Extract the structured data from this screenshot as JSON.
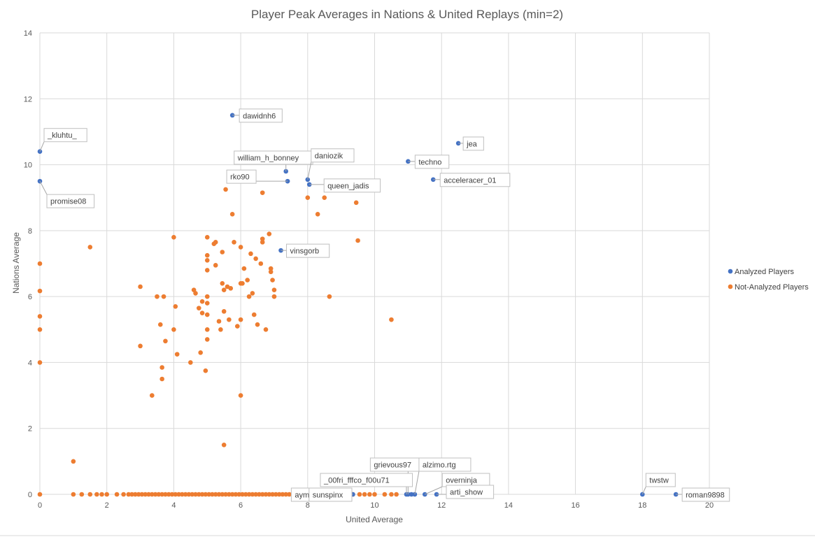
{
  "chart_data": {
    "type": "scatter",
    "title": "Player Peak Averages in Nations & United Replays (min=2)",
    "xlabel": "United Average",
    "ylabel": "Nations Average",
    "xlim": [
      0,
      20
    ],
    "ylim": [
      0,
      14
    ],
    "xticks": [
      0,
      2,
      4,
      6,
      8,
      10,
      12,
      14,
      16,
      18,
      20
    ],
    "yticks": [
      0,
      2,
      4,
      6,
      8,
      10,
      12,
      14
    ],
    "grid": true,
    "legend_position": "right",
    "series": [
      {
        "name": "Analyzed Players",
        "color": "#4472C4",
        "points": [
          {
            "x": 0,
            "y": 10.4,
            "label": "_kluhtu_"
          },
          {
            "x": 0,
            "y": 9.5,
            "label": "promise08"
          },
          {
            "x": 5.75,
            "y": 11.5,
            "label": "dawidnh6"
          },
          {
            "x": 7.35,
            "y": 9.8,
            "label": "william_h_bonney"
          },
          {
            "x": 7.4,
            "y": 9.5,
            "label": "rko90"
          },
          {
            "x": 8.0,
            "y": 9.55,
            "label": "daniozik"
          },
          {
            "x": 8.05,
            "y": 9.4,
            "label": "queen_jadis"
          },
          {
            "x": 11.0,
            "y": 10.1,
            "label": "techno"
          },
          {
            "x": 12.5,
            "y": 10.65,
            "label": "jea"
          },
          {
            "x": 11.75,
            "y": 9.55,
            "label": "acceleracer_01"
          },
          {
            "x": 7.2,
            "y": 7.4,
            "label": "vinsgorb"
          },
          {
            "x": 11.0,
            "y": 0,
            "label": "grievous97"
          },
          {
            "x": 11.2,
            "y": 0,
            "label": "alzimo.rtg"
          },
          {
            "x": 10.95,
            "y": 0,
            "label": "_00fri_fffco_f00u71"
          },
          {
            "x": 11.5,
            "y": 0,
            "label": "overninja"
          },
          {
            "x": 11.85,
            "y": 0,
            "label": "arti_show"
          },
          {
            "x": 9.35,
            "y": 0,
            "label": "aymeric_98"
          },
          {
            "x": 8.0,
            "y": 0,
            "label": "sunspinx"
          },
          {
            "x": 18.0,
            "y": 0,
            "label": "twstw"
          },
          {
            "x": 19.0,
            "y": 0,
            "label": "roman9898"
          },
          {
            "x": 11.1,
            "y": 0,
            "label": ""
          }
        ]
      },
      {
        "name": "Not-Analyzed Players",
        "color": "#ED7D31",
        "points": [
          {
            "x": 0,
            "y": 7.0
          },
          {
            "x": 0,
            "y": 6.17
          },
          {
            "x": 0,
            "y": 5.4
          },
          {
            "x": 0,
            "y": 5.0
          },
          {
            "x": 0,
            "y": 4.0
          },
          {
            "x": 1.0,
            "y": 1.0
          },
          {
            "x": 1.5,
            "y": 7.5
          },
          {
            "x": 3.0,
            "y": 6.3
          },
          {
            "x": 3.0,
            "y": 4.5
          },
          {
            "x": 3.35,
            "y": 3.0
          },
          {
            "x": 3.5,
            "y": 6.0
          },
          {
            "x": 3.6,
            "y": 5.15
          },
          {
            "x": 3.65,
            "y": 3.85
          },
          {
            "x": 3.65,
            "y": 3.5
          },
          {
            "x": 3.7,
            "y": 6.0
          },
          {
            "x": 3.75,
            "y": 4.65
          },
          {
            "x": 4.0,
            "y": 7.8
          },
          {
            "x": 4.0,
            "y": 5.0
          },
          {
            "x": 4.05,
            "y": 5.7
          },
          {
            "x": 4.1,
            "y": 4.25
          },
          {
            "x": 4.5,
            "y": 4.0
          },
          {
            "x": 4.6,
            "y": 6.2
          },
          {
            "x": 4.65,
            "y": 6.1
          },
          {
            "x": 4.75,
            "y": 5.65
          },
          {
            "x": 4.8,
            "y": 4.3
          },
          {
            "x": 4.85,
            "y": 5.85
          },
          {
            "x": 4.85,
            "y": 5.5
          },
          {
            "x": 4.95,
            "y": 3.75
          },
          {
            "x": 5.0,
            "y": 7.8
          },
          {
            "x": 5.0,
            "y": 7.25
          },
          {
            "x": 5.0,
            "y": 7.1
          },
          {
            "x": 5.0,
            "y": 6.8
          },
          {
            "x": 5.0,
            "y": 6.0
          },
          {
            "x": 5.0,
            "y": 5.8
          },
          {
            "x": 5.0,
            "y": 5.45
          },
          {
            "x": 5.0,
            "y": 5.0
          },
          {
            "x": 5.0,
            "y": 4.7
          },
          {
            "x": 5.2,
            "y": 7.6
          },
          {
            "x": 5.25,
            "y": 7.65
          },
          {
            "x": 5.25,
            "y": 6.95
          },
          {
            "x": 5.35,
            "y": 5.25
          },
          {
            "x": 5.4,
            "y": 5.0
          },
          {
            "x": 5.45,
            "y": 7.35
          },
          {
            "x": 5.45,
            "y": 6.4
          },
          {
            "x": 5.5,
            "y": 6.2
          },
          {
            "x": 5.5,
            "y": 5.55
          },
          {
            "x": 5.5,
            "y": 1.5
          },
          {
            "x": 5.55,
            "y": 9.25
          },
          {
            "x": 5.6,
            "y": 6.3
          },
          {
            "x": 5.65,
            "y": 5.3
          },
          {
            "x": 5.7,
            "y": 6.25
          },
          {
            "x": 5.75,
            "y": 8.5
          },
          {
            "x": 5.8,
            "y": 7.65
          },
          {
            "x": 5.9,
            "y": 5.1
          },
          {
            "x": 6.0,
            "y": 7.5
          },
          {
            "x": 6.0,
            "y": 6.4
          },
          {
            "x": 6.0,
            "y": 5.3
          },
          {
            "x": 6.0,
            "y": 3.0
          },
          {
            "x": 6.05,
            "y": 6.4
          },
          {
            "x": 6.1,
            "y": 6.85
          },
          {
            "x": 6.2,
            "y": 6.5
          },
          {
            "x": 6.25,
            "y": 6.0
          },
          {
            "x": 6.3,
            "y": 7.3
          },
          {
            "x": 6.35,
            "y": 6.1
          },
          {
            "x": 6.4,
            "y": 5.45
          },
          {
            "x": 6.45,
            "y": 7.15
          },
          {
            "x": 6.5,
            "y": 5.15
          },
          {
            "x": 6.6,
            "y": 7.0
          },
          {
            "x": 6.65,
            "y": 7.75
          },
          {
            "x": 6.65,
            "y": 7.65
          },
          {
            "x": 6.65,
            "y": 9.15
          },
          {
            "x": 6.75,
            "y": 5.0
          },
          {
            "x": 6.85,
            "y": 7.9
          },
          {
            "x": 6.9,
            "y": 6.85
          },
          {
            "x": 6.9,
            "y": 6.75
          },
          {
            "x": 6.95,
            "y": 6.5
          },
          {
            "x": 7.0,
            "y": 6.2
          },
          {
            "x": 7.0,
            "y": 6.0
          },
          {
            "x": 8.0,
            "y": 9.0
          },
          {
            "x": 8.3,
            "y": 8.5
          },
          {
            "x": 8.5,
            "y": 9.0
          },
          {
            "x": 8.65,
            "y": 6.0
          },
          {
            "x": 9.45,
            "y": 8.85
          },
          {
            "x": 9.5,
            "y": 7.7
          },
          {
            "x": 10.5,
            "y": 5.3
          }
        ],
        "zero_line_x": [
          0,
          1.0,
          1.25,
          1.5,
          1.7,
          1.85,
          2.0,
          2.3,
          2.5,
          2.65,
          2.75,
          2.85,
          2.95,
          3.05,
          3.15,
          3.25,
          3.35,
          3.45,
          3.55,
          3.65,
          3.75,
          3.85,
          3.95,
          4.05,
          4.15,
          4.25,
          4.35,
          4.45,
          4.55,
          4.65,
          4.75,
          4.85,
          4.95,
          5.05,
          5.15,
          5.25,
          5.35,
          5.45,
          5.55,
          5.65,
          5.75,
          5.85,
          5.95,
          6.05,
          6.15,
          6.25,
          6.35,
          6.45,
          6.55,
          6.65,
          6.75,
          6.85,
          6.95,
          7.05,
          7.15,
          7.25,
          7.35,
          7.45,
          7.55,
          7.65,
          7.75,
          7.85,
          8.0,
          8.35,
          8.7,
          9.0,
          9.35,
          9.55,
          9.7,
          9.85,
          10.0,
          10.3,
          10.5,
          10.65
        ]
      }
    ]
  }
}
